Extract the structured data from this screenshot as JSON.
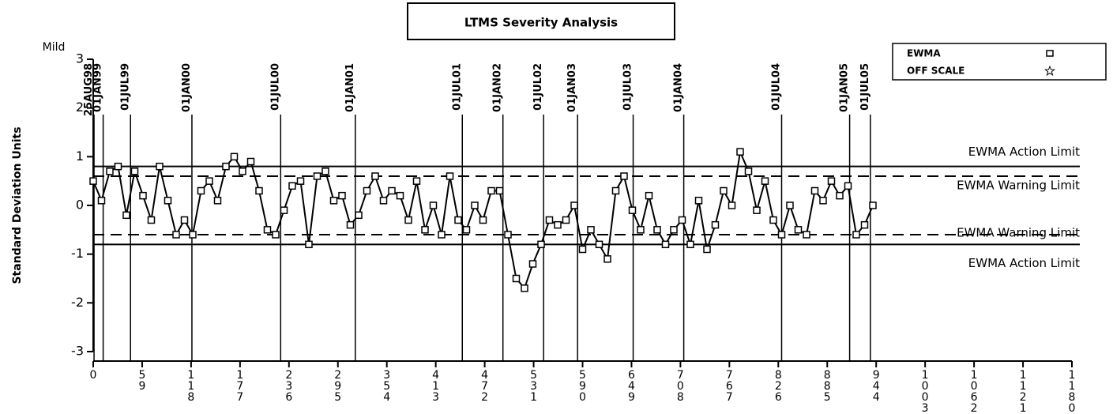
{
  "chart_data": {
    "type": "line",
    "title": "LTMS Severity Analysis",
    "y_label": "Standard Deviation Units",
    "y_top_label": "Mild",
    "xlim": [
      0,
      1180
    ],
    "xticks": [
      0,
      59,
      118,
      177,
      236,
      295,
      354,
      413,
      472,
      531,
      590,
      649,
      708,
      767,
      826,
      885,
      944,
      1003,
      1062,
      1121,
      1180
    ],
    "ylim": [
      -3,
      3
    ],
    "yticks": [
      -3,
      -2,
      -1,
      0,
      1,
      2,
      3
    ],
    "legend_position": "upper right",
    "legend": [
      {
        "name": "EWMA",
        "marker": "square"
      },
      {
        "name": "OFF SCALE",
        "marker": "star"
      }
    ],
    "reference_lines": [
      {
        "value": 1,
        "label": "25AUG98"
      },
      {
        "value": 12,
        "label": "01JAN99"
      },
      {
        "value": 45,
        "label": "01JUL99"
      },
      {
        "value": 119,
        "label": "01JAN00"
      },
      {
        "value": 226,
        "label": "01JUL00"
      },
      {
        "value": 316,
        "label": "01JAN01"
      },
      {
        "value": 445,
        "label": "01JUL01"
      },
      {
        "value": 494,
        "label": "01JAN02"
      },
      {
        "value": 543,
        "label": "01JUL02"
      },
      {
        "value": 584,
        "label": "01JAN03"
      },
      {
        "value": 651,
        "label": "01JUL03"
      },
      {
        "value": 712,
        "label": "01JAN04"
      },
      {
        "value": 830,
        "label": "01JUL04"
      },
      {
        "value": 912,
        "label": "01JAN05"
      },
      {
        "value": 937,
        "label": "01JUL05"
      }
    ],
    "limits": [
      {
        "value": 0.8,
        "label": "EWMA Action Limit",
        "style": "solid"
      },
      {
        "value": 0.6,
        "label": "EWMA Warning Limit",
        "style": "dashed"
      },
      {
        "value": -0.6,
        "label": "EWMA Warning Limit",
        "style": "dashed"
      },
      {
        "value": -0.8,
        "label": "EWMA Action Limit",
        "style": "solid"
      }
    ],
    "series": [
      {
        "name": "EWMA",
        "color": "#000000",
        "x": [
          0,
          10,
          20,
          30,
          40,
          50,
          60,
          70,
          80,
          90,
          100,
          110,
          120,
          130,
          140,
          150,
          160,
          170,
          180,
          190,
          200,
          210,
          220,
          230,
          240,
          250,
          260,
          270,
          280,
          290,
          300,
          310,
          320,
          330,
          340,
          350,
          360,
          370,
          380,
          390,
          400,
          410,
          420,
          430,
          440,
          450,
          460,
          470,
          480,
          490,
          500,
          510,
          520,
          530,
          540,
          550,
          560,
          570,
          580,
          590,
          600,
          610,
          620,
          630,
          640,
          650,
          660,
          670,
          680,
          690,
          700,
          710,
          720,
          730,
          740,
          750,
          760,
          770,
          780,
          790,
          800,
          810,
          820,
          830,
          840,
          850,
          860,
          870,
          880,
          890,
          900,
          910,
          920,
          930,
          940
        ],
        "values": [
          0.5,
          0.1,
          0.7,
          0.8,
          -0.2,
          0.7,
          0.2,
          -0.3,
          0.8,
          0.1,
          -0.6,
          -0.3,
          -0.6,
          0.3,
          0.5,
          0.1,
          0.8,
          1.0,
          0.7,
          0.9,
          0.3,
          -0.5,
          -0.6,
          -0.1,
          0.4,
          0.5,
          -0.8,
          0.6,
          0.7,
          0.1,
          0.2,
          -0.4,
          -0.2,
          0.3,
          0.6,
          0.1,
          0.3,
          0.2,
          -0.3,
          0.5,
          -0.5,
          0.0,
          -0.6,
          0.6,
          -0.3,
          -0.5,
          0.0,
          -0.3,
          0.3,
          0.3,
          -0.6,
          -1.5,
          -1.7,
          -1.2,
          -0.8,
          -0.3,
          -0.4,
          -0.3,
          0.0,
          -0.9,
          -0.5,
          -0.8,
          -1.1,
          0.3,
          0.6,
          -0.1,
          -0.5,
          0.2,
          -0.5,
          -0.8,
          -0.5,
          -0.3,
          -0.8,
          0.1,
          -0.9,
          -0.4,
          0.3,
          0.0,
          1.1,
          0.7,
          -0.1,
          0.5,
          -0.3,
          -0.6,
          0.0,
          -0.5,
          -0.6,
          0.3,
          0.1,
          0.5,
          0.2,
          0.4,
          -0.6,
          -0.4,
          0.0
        ]
      }
    ]
  }
}
